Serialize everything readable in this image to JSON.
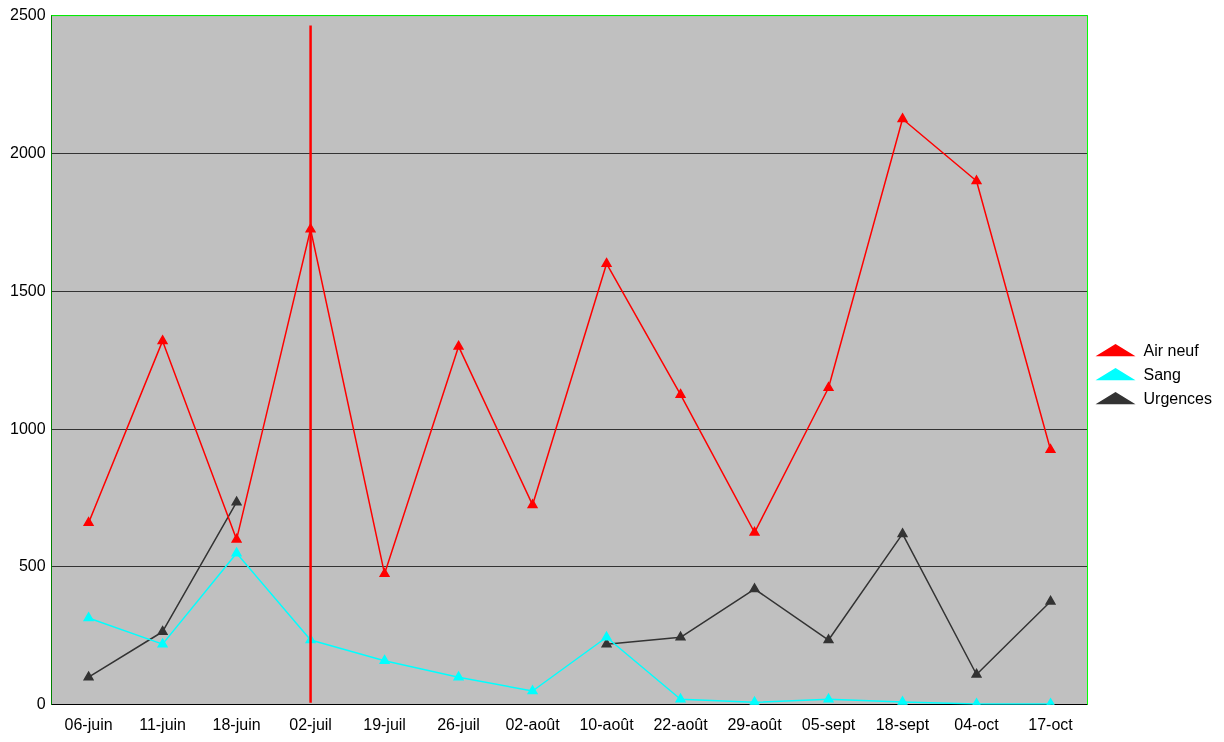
{
  "chart_data": {
    "type": "line",
    "categories": [
      "06-juin",
      "11-juin",
      "18-juin",
      "02-juil",
      "19-juil",
      "26-juil",
      "02-août",
      "10-août",
      "22-août",
      "29-août",
      "05-sept",
      "18-sept",
      "04-oct",
      "17-oct"
    ],
    "series": [
      {
        "name": "Air neuf",
        "color": "#ff0000",
        "values": [
          660,
          1320,
          600,
          1725,
          475,
          1300,
          725,
          1600,
          1125,
          625,
          1150,
          2125,
          1900,
          925
        ]
      },
      {
        "name": "Sang",
        "color": "#00ffff",
        "values": [
          315,
          220,
          550,
          235,
          160,
          100,
          50,
          245,
          20,
          9,
          20,
          10,
          3,
          3
        ]
      },
      {
        "name": "Urgences",
        "color": "#333333",
        "values": [
          100,
          265,
          735,
          null,
          null,
          null,
          null,
          220,
          245,
          420,
          235,
          620,
          110,
          375
        ]
      }
    ],
    "ylim": [
      0,
      2500
    ],
    "yticks": [
      0,
      500,
      1000,
      1500,
      2000,
      2500
    ],
    "grid": "y",
    "legend": "right",
    "marker": "triangle",
    "line_style": "solid",
    "ref_lines": [
      {
        "axis": "x",
        "value": "02-juil",
        "color": "#ff0000"
      }
    ]
  }
}
